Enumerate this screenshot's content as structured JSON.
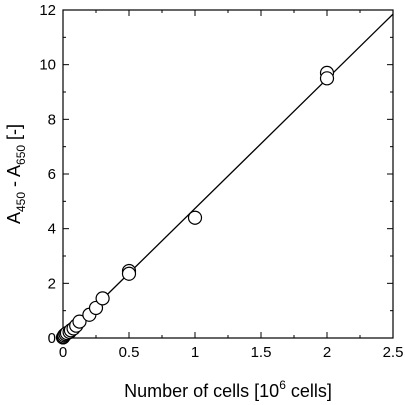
{
  "chart_data": {
    "type": "scatter",
    "title": "",
    "xlabel": {
      "main": "Number of cells [10",
      "sup": "6",
      "tail": " cells]"
    },
    "ylabel": {
      "a": "A",
      "sub1": "450",
      "mid": " - A",
      "sub2": "650",
      "tail": " [-]"
    },
    "xlim": [
      0,
      2.5
    ],
    "ylim": [
      0,
      12
    ],
    "x_ticks": [
      "0",
      "0.5",
      "1",
      "1.5",
      "2",
      "2.5"
    ],
    "x_tick_values": [
      0,
      0.5,
      1,
      1.5,
      2,
      2.5
    ],
    "y_ticks": [
      "0",
      "2",
      "4",
      "6",
      "8",
      "10",
      "12"
    ],
    "y_tick_values": [
      0,
      2,
      4,
      6,
      8,
      10,
      12
    ],
    "grid": false,
    "series": [
      {
        "marker": "open-circle",
        "x": [
          0,
          0.005,
          0.01,
          0.02,
          0.03,
          0.05,
          0.06,
          0.08,
          0.1,
          0.125,
          0.2,
          0.25,
          0.3,
          0.5,
          0.5,
          1.0,
          2.0,
          2.0
        ],
        "y": [
          0.02,
          0.05,
          0.1,
          0.14,
          0.18,
          0.22,
          0.28,
          0.35,
          0.45,
          0.6,
          0.85,
          1.1,
          1.45,
          2.45,
          2.35,
          4.4,
          9.7,
          9.5
        ]
      }
    ],
    "fit_line": {
      "x": [
        0,
        2.5
      ],
      "y": [
        0,
        11.85
      ]
    }
  }
}
